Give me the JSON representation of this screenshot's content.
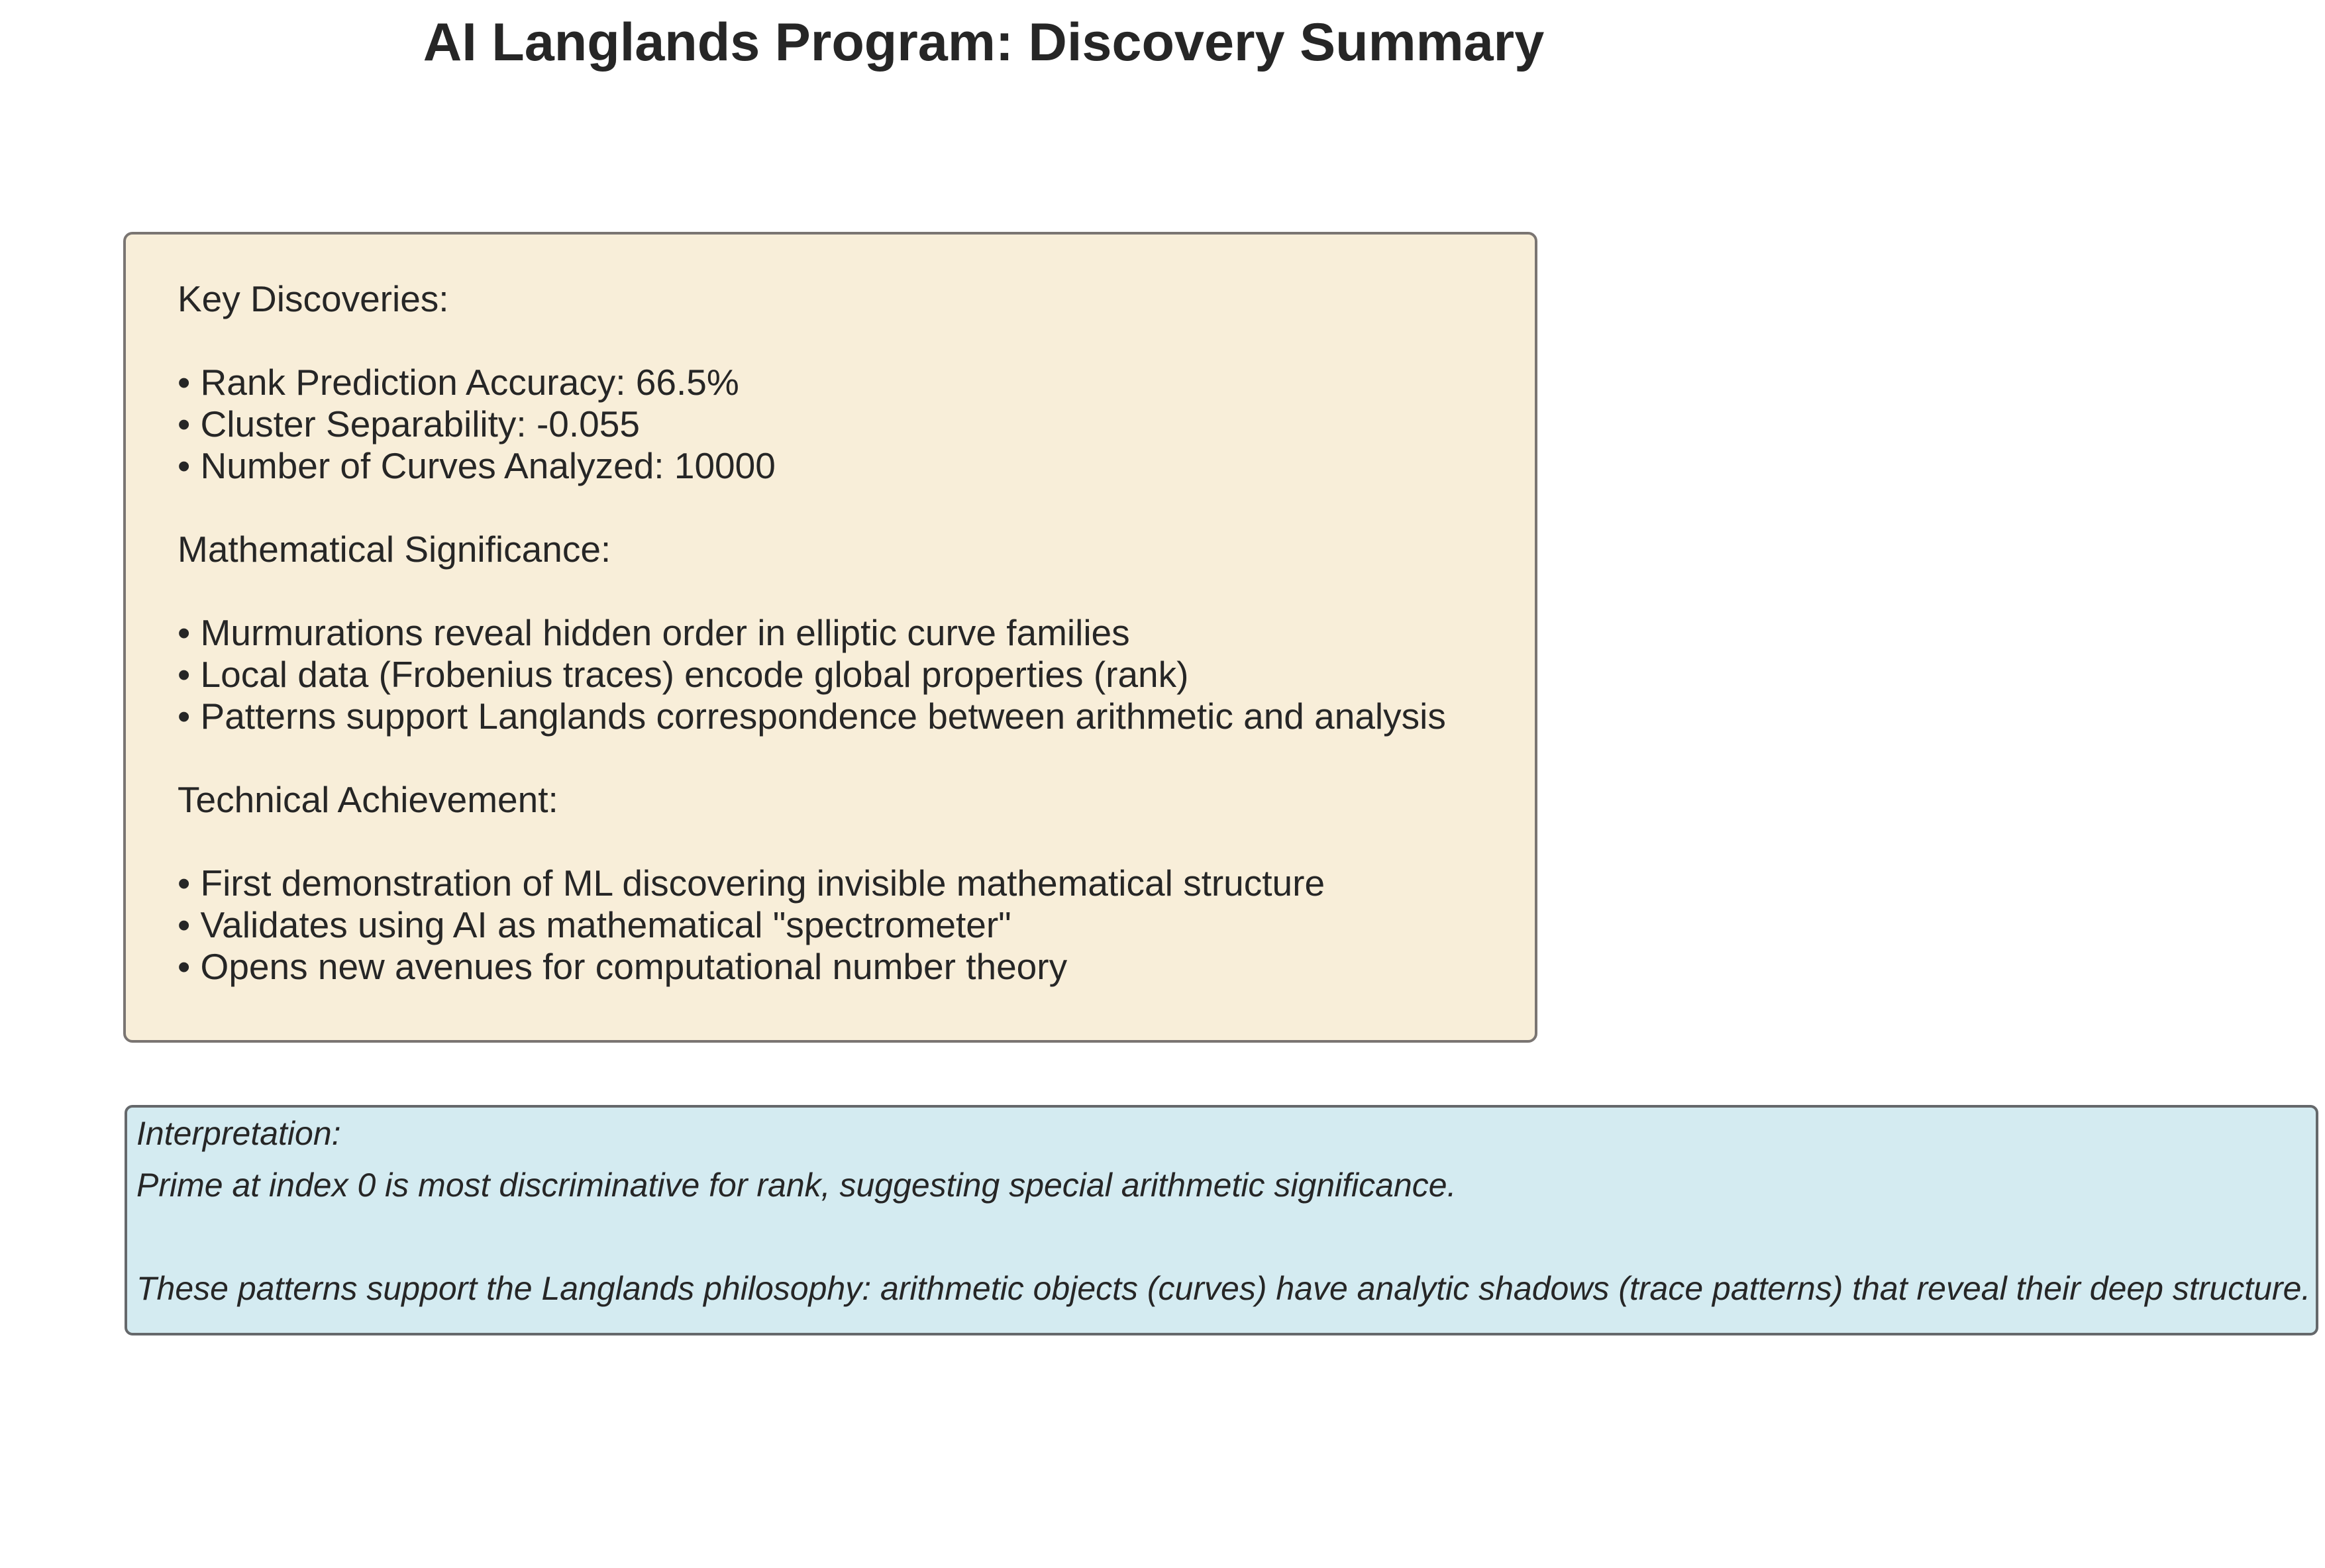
{
  "title": "AI Langlands Program: Discovery Summary",
  "summary": {
    "key_heading": "Key Discoveries:",
    "key_items": [
      "• Rank Prediction Accuracy: 66.5%",
      "• Cluster Separability: -0.055",
      "• Number of Curves Analyzed: 10000"
    ],
    "math_heading": "Mathematical Significance:",
    "math_items": [
      "• Murmurations reveal hidden order in elliptic curve families",
      "• Local data (Frobenius traces) encode global properties (rank)",
      "• Patterns support Langlands correspondence between arithmetic and analysis"
    ],
    "tech_heading": "Technical Achievement:",
    "tech_items": [
      "• First demonstration of ML discovering invisible mathematical structure",
      "• Validates using AI as mathematical \"spectrometer\"",
      "• Opens new avenues for computational number theory"
    ],
    "box_color": "#f8eed9"
  },
  "interpretation": {
    "heading": "Interpretation:",
    "line1": "Prime at index 0 is most discriminative for rank, suggesting special arithmetic significance.",
    "line2": "These patterns support the Langlands philosophy: arithmetic objects (curves) have analytic shadows (trace patterns) that reveal their deep structure.",
    "box_color": "#d4ebf1"
  }
}
